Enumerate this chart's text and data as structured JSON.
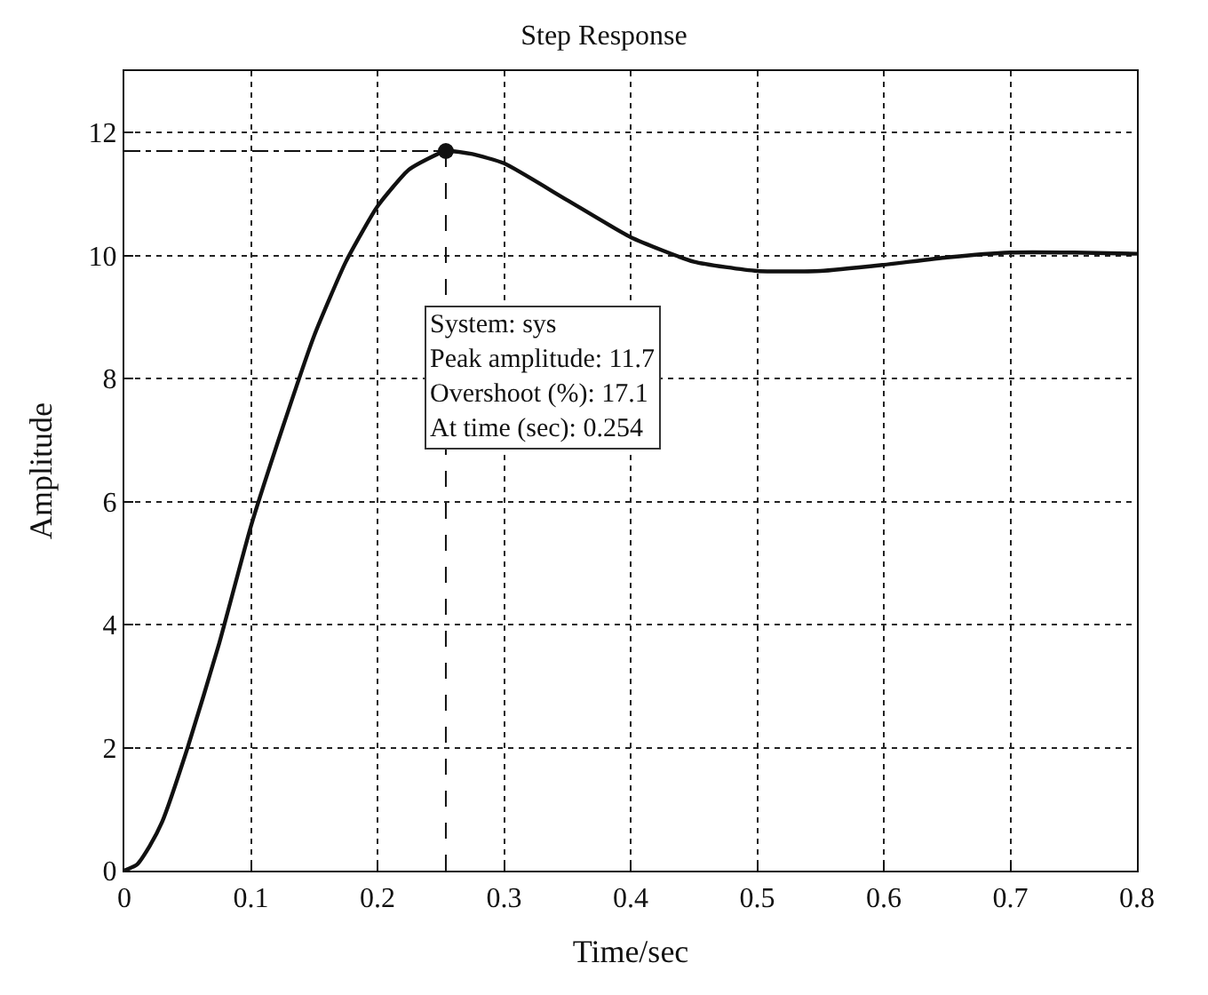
{
  "chart_data": {
    "type": "line",
    "title": "Step Response",
    "xlabel": "Time/sec",
    "ylabel": "Amplitude",
    "xlim": [
      0,
      0.8
    ],
    "ylim": [
      0,
      13
    ],
    "xticks": [
      0,
      0.1,
      0.2,
      0.3,
      0.4,
      0.5,
      0.6,
      0.7,
      0.8
    ],
    "yticks": [
      0,
      2,
      4,
      6,
      8,
      10,
      12
    ],
    "grid": true,
    "series": [
      {
        "color": "#111111",
        "marker": "none",
        "x": [
          0,
          0.01,
          0.02,
          0.03,
          0.05,
          0.075,
          0.1,
          0.125,
          0.15,
          0.175,
          0.2,
          0.225,
          0.254,
          0.275,
          0.3,
          0.35,
          0.4,
          0.45,
          0.5,
          0.55,
          0.6,
          0.65,
          0.7,
          0.75,
          0.8
        ],
        "values": [
          0,
          0.1,
          0.4,
          0.8,
          2.0,
          3.7,
          5.6,
          7.2,
          8.7,
          9.9,
          10.8,
          11.4,
          11.7,
          11.65,
          11.5,
          10.9,
          10.3,
          9.9,
          9.75,
          9.75,
          9.85,
          9.97,
          10.05,
          10.05,
          10.03
        ]
      },
      {
        "type": "scatter",
        "color": "#111111",
        "marker": "circle",
        "x": [
          0.254
        ],
        "values": [
          11.7
        ]
      }
    ],
    "ref_lines": [
      {
        "axis": "y",
        "value": 11.7,
        "line_style": "dashdot",
        "color": "#111111"
      },
      {
        "axis": "x",
        "value": 0.254,
        "line_style": "dashed",
        "color": "#111111"
      }
    ],
    "annotations": [
      "System: sys\nPeak amplitude: 11.7\nOvershoot (%): 17.1\nAt time (sec): 0.254"
    ]
  }
}
